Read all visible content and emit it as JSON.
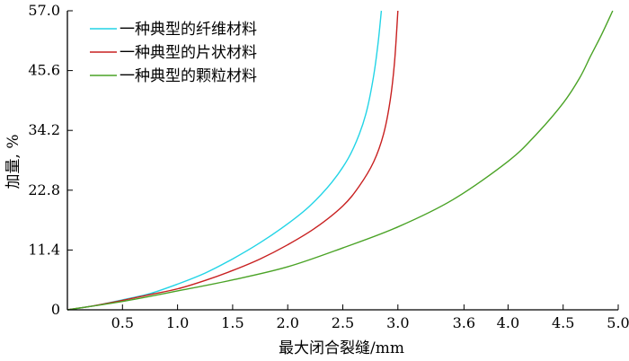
{
  "chart_data": {
    "type": "line",
    "title": "",
    "xlabel": "最大闭合裂缝/mm",
    "ylabel": "加量, %",
    "xlim": [
      0,
      5.0
    ],
    "ylim": [
      0,
      57.0
    ],
    "xticks": [
      "0.5",
      "1.0",
      "1.5",
      "2.0",
      "2.5",
      "3.0",
      "3.6",
      "4.0",
      "4.5",
      "5.0"
    ],
    "yticks": [
      "0",
      "11.4",
      "22.8",
      "34.2",
      "45.6",
      "57.0"
    ],
    "grid": false,
    "legend_position": "top-left",
    "series": [
      {
        "name": "一种典型的纤维材料",
        "color": "#22d4e6",
        "x": [
          0,
          0.25,
          0.5,
          0.75,
          1.0,
          1.25,
          1.5,
          1.75,
          2.0,
          2.2,
          2.4,
          2.55,
          2.65,
          2.72,
          2.78,
          2.82,
          2.85
        ],
        "y": [
          0,
          0.8,
          1.9,
          3.1,
          4.9,
          7.0,
          9.7,
          12.8,
          16.4,
          19.8,
          24.3,
          28.9,
          33.5,
          38.2,
          44.6,
          50.8,
          57.0
        ]
      },
      {
        "name": "一种典型的片状材料",
        "color": "#c82020",
        "x": [
          0,
          0.25,
          0.5,
          0.75,
          1.0,
          1.25,
          1.5,
          1.75,
          2.0,
          2.25,
          2.5,
          2.65,
          2.78,
          2.87,
          2.93,
          2.97,
          3.0
        ],
        "y": [
          0,
          0.8,
          1.8,
          2.9,
          4.0,
          5.6,
          7.5,
          9.7,
          12.4,
          15.6,
          19.8,
          23.6,
          28.2,
          33.5,
          39.9,
          47.3,
          57.0
        ]
      },
      {
        "name": "一种典型的颗粒材料",
        "color": "#4aa326",
        "x": [
          0,
          0.5,
          1.0,
          1.5,
          2.0,
          2.5,
          3.0,
          3.5,
          4.0,
          4.25,
          4.5,
          4.65,
          4.75,
          4.85,
          4.95
        ],
        "y": [
          0,
          1.6,
          3.6,
          5.7,
          8.2,
          11.8,
          15.8,
          21.0,
          28.3,
          33.3,
          39.4,
          44.2,
          48.4,
          52.5,
          57.0
        ]
      }
    ]
  }
}
